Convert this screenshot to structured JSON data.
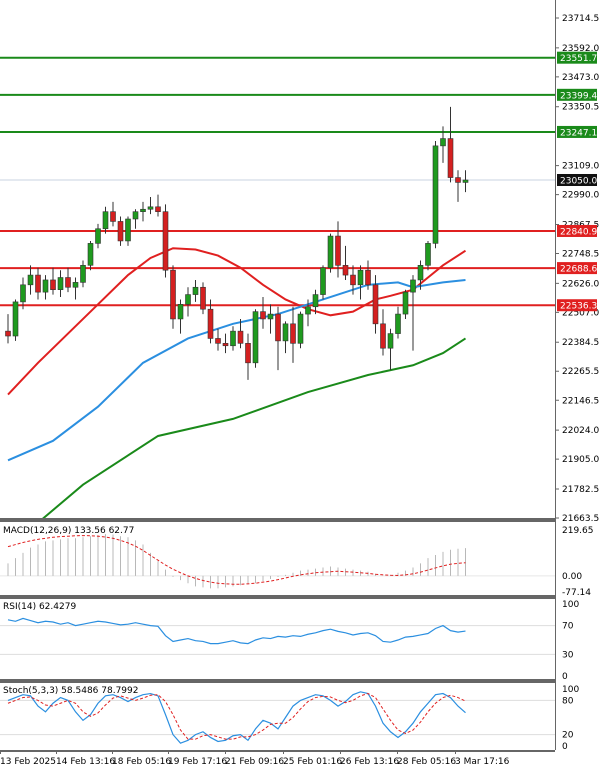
{
  "chart_data": {
    "type": "candlestick",
    "price_axis": {
      "ticks": [
        23714.5,
        23592.0,
        23473.0,
        23350.5,
        23109.0,
        22990.0,
        22867.5,
        22748.5,
        22626.0,
        22507.0,
        22384.5,
        22265.5,
        22146.5,
        22024.0,
        21905.0,
        21782.5,
        21663.5
      ]
    },
    "time_labels": [
      "13 Feb 2025",
      "14 Feb 13:16",
      "18 Feb 05:16",
      "19 Feb 17:16",
      "21 Feb 09:16",
      "25 Feb 01:16",
      "26 Feb 13:16",
      "28 Feb 05:16",
      "3 Mar 17:16"
    ],
    "horizontal_levels": [
      {
        "value": 23551.7,
        "label": "23551.7",
        "color": "#1a8a1a"
      },
      {
        "value": 23399.4,
        "label": "23399.4",
        "color": "#1a8a1a"
      },
      {
        "value": 23247.1,
        "label": "23247.1",
        "color": "#1a8a1a"
      },
      {
        "value": 22840.9,
        "label": "22840.9",
        "color": "#e02020"
      },
      {
        "value": 22688.6,
        "label": "22688.6",
        "color": "#e02020"
      },
      {
        "value": 22536.3,
        "label": "22536.3",
        "color": "#e02020"
      }
    ],
    "current_price": {
      "value": 23050.0,
      "label": "23050.0"
    },
    "candles": [
      [
        22430,
        22500,
        22380,
        22410
      ],
      [
        22410,
        22560,
        22390,
        22550
      ],
      [
        22550,
        22650,
        22520,
        22620
      ],
      [
        22620,
        22700,
        22580,
        22660
      ],
      [
        22660,
        22690,
        22560,
        22590
      ],
      [
        22590,
        22660,
        22560,
        22640
      ],
      [
        22640,
        22690,
        22580,
        22600
      ],
      [
        22600,
        22680,
        22570,
        22650
      ],
      [
        22650,
        22690,
        22590,
        22610
      ],
      [
        22610,
        22650,
        22560,
        22630
      ],
      [
        22630,
        22720,
        22610,
        22700
      ],
      [
        22700,
        22800,
        22680,
        22790
      ],
      [
        22790,
        22870,
        22770,
        22850
      ],
      [
        22850,
        22940,
        22830,
        22920
      ],
      [
        22920,
        22960,
        22860,
        22880
      ],
      [
        22880,
        22900,
        22780,
        22800
      ],
      [
        22800,
        22900,
        22780,
        22890
      ],
      [
        22890,
        22930,
        22850,
        22920
      ],
      [
        22920,
        22960,
        22880,
        22930
      ],
      [
        22930,
        22980,
        22910,
        22940
      ],
      [
        22940,
        22990,
        22900,
        22920
      ],
      [
        22920,
        22950,
        22650,
        22680
      ],
      [
        22680,
        22700,
        22440,
        22480
      ],
      [
        22480,
        22560,
        22420,
        22540
      ],
      [
        22540,
        22610,
        22490,
        22580
      ],
      [
        22580,
        22640,
        22550,
        22610
      ],
      [
        22610,
        22630,
        22500,
        22520
      ],
      [
        22520,
        22560,
        22380,
        22400
      ],
      [
        22400,
        22440,
        22350,
        22380
      ],
      [
        22380,
        22420,
        22340,
        22370
      ],
      [
        22370,
        22450,
        22350,
        22430
      ],
      [
        22430,
        22480,
        22360,
        22380
      ],
      [
        22380,
        22420,
        22230,
        22300
      ],
      [
        22300,
        22520,
        22280,
        22510
      ],
      [
        22510,
        22570,
        22440,
        22480
      ],
      [
        22480,
        22540,
        22420,
        22500
      ],
      [
        22500,
        22530,
        22270,
        22390
      ],
      [
        22390,
        22470,
        22340,
        22460
      ],
      [
        22460,
        22530,
        22300,
        22380
      ],
      [
        22380,
        22510,
        22360,
        22500
      ],
      [
        22500,
        22560,
        22450,
        22530
      ],
      [
        22530,
        22600,
        22500,
        22580
      ],
      [
        22580,
        22700,
        22560,
        22690
      ],
      [
        22690,
        22830,
        22670,
        22820
      ],
      [
        22820,
        22880,
        22650,
        22700
      ],
      [
        22700,
        22780,
        22640,
        22660
      ],
      [
        22660,
        22700,
        22580,
        22620
      ],
      [
        22620,
        22700,
        22560,
        22680
      ],
      [
        22680,
        22720,
        22600,
        22620
      ],
      [
        22620,
        22660,
        22420,
        22460
      ],
      [
        22460,
        22520,
        22330,
        22360
      ],
      [
        22360,
        22440,
        22270,
        22420
      ],
      [
        22420,
        22530,
        22400,
        22500
      ],
      [
        22500,
        22600,
        22480,
        22590
      ],
      [
        22590,
        22660,
        22350,
        22640
      ],
      [
        22640,
        22720,
        22600,
        22700
      ],
      [
        22700,
        22800,
        22680,
        22790
      ],
      [
        22790,
        23210,
        22770,
        23190
      ],
      [
        23190,
        23270,
        23120,
        23220
      ],
      [
        23220,
        23350,
        23040,
        23060
      ],
      [
        23060,
        23090,
        22960,
        23040
      ],
      [
        23040,
        23090,
        23000,
        23050
      ]
    ],
    "overlay_lines": [
      {
        "name": "",
        "color": "#e02020",
        "points": [
          [
            0,
            22170
          ],
          [
            4,
            22300
          ],
          [
            8,
            22420
          ],
          [
            12,
            22540
          ],
          [
            16,
            22660
          ],
          [
            19,
            22730
          ],
          [
            22,
            22770
          ],
          [
            25,
            22765
          ],
          [
            28,
            22740
          ],
          [
            31,
            22690
          ],
          [
            34,
            22620
          ],
          [
            37,
            22560
          ],
          [
            40,
            22520
          ],
          [
            43,
            22495
          ],
          [
            46,
            22510
          ],
          [
            49,
            22560
          ],
          [
            51,
            22575
          ],
          [
            54,
            22600
          ],
          [
            56,
            22650
          ],
          [
            58,
            22700
          ],
          [
            61,
            22760
          ]
        ]
      },
      {
        "name": "",
        "color": "#2b8fe0",
        "points": [
          [
            0,
            21900
          ],
          [
            6,
            21980
          ],
          [
            12,
            22120
          ],
          [
            18,
            22300
          ],
          [
            24,
            22400
          ],
          [
            30,
            22460
          ],
          [
            36,
            22500
          ],
          [
            42,
            22560
          ],
          [
            48,
            22620
          ],
          [
            52,
            22630
          ],
          [
            54,
            22610
          ],
          [
            58,
            22630
          ],
          [
            61,
            22640
          ]
        ]
      },
      {
        "name": "",
        "color": "#1a8a1a",
        "points": [
          [
            0,
            21540
          ],
          [
            10,
            21800
          ],
          [
            20,
            22000
          ],
          [
            30,
            22070
          ],
          [
            40,
            22180
          ],
          [
            48,
            22250
          ],
          [
            54,
            22290
          ],
          [
            58,
            22340
          ],
          [
            61,
            22400
          ]
        ]
      }
    ],
    "macd": {
      "title": "MACD(12,26,9) 133.56 62.77",
      "axis": [
        "219.65",
        "0.00",
        "-77.14"
      ],
      "hist": [
        60,
        85,
        110,
        135,
        150,
        165,
        170,
        175,
        180,
        180,
        185,
        190,
        195,
        200,
        198,
        190,
        185,
        170,
        150,
        110,
        70,
        30,
        -5,
        -20,
        -35,
        -50,
        -55,
        -60,
        -60,
        -55,
        -50,
        -45,
        -40,
        -35,
        -25,
        -15,
        -5,
        5,
        15,
        25,
        30,
        35,
        40,
        45,
        40,
        35,
        30,
        25,
        20,
        10,
        0,
        5,
        15,
        25,
        40,
        60,
        85,
        100,
        115,
        125,
        130,
        133
      ],
      "signal": [
        140,
        150,
        160,
        168,
        175,
        180,
        185,
        188,
        190,
        192,
        193,
        192,
        190,
        186,
        180,
        170,
        158,
        142,
        122,
        98,
        75,
        52,
        32,
        15,
        0,
        -12,
        -22,
        -30,
        -35,
        -38,
        -40,
        -40,
        -38,
        -35,
        -30,
        -25,
        -18,
        -10,
        -2,
        5,
        10,
        15,
        18,
        20,
        22,
        20,
        18,
        15,
        12,
        8,
        5,
        3,
        2,
        5,
        10,
        18,
        28,
        38,
        48,
        56,
        60,
        63
      ]
    },
    "rsi": {
      "title": "RSI(14) 62.4279",
      "axis": [
        "100",
        "70",
        "30",
        "0"
      ],
      "values": [
        78,
        76,
        80,
        77,
        74,
        76,
        75,
        72,
        74,
        70,
        72,
        74,
        76,
        75,
        73,
        71,
        72,
        74,
        72,
        70,
        69,
        56,
        48,
        50,
        52,
        49,
        48,
        45,
        45,
        47,
        49,
        46,
        45,
        50,
        53,
        52,
        55,
        54,
        56,
        55,
        58,
        60,
        63,
        65,
        62,
        60,
        57,
        59,
        60,
        56,
        48,
        47,
        50,
        54,
        55,
        57,
        59,
        66,
        70,
        63,
        61,
        62.4
      ]
    },
    "stoch": {
      "title": "Stoch(5,3,3) 58.5486 78.7992",
      "axis": [
        "100",
        "80",
        "20",
        "0"
      ],
      "k": [
        80,
        85,
        90,
        88,
        70,
        60,
        75,
        85,
        80,
        60,
        45,
        55,
        75,
        88,
        90,
        85,
        78,
        85,
        90,
        92,
        88,
        55,
        20,
        5,
        10,
        20,
        25,
        15,
        8,
        10,
        18,
        20,
        10,
        30,
        45,
        40,
        30,
        50,
        70,
        80,
        85,
        90,
        88,
        80,
        70,
        78,
        90,
        95,
        92,
        70,
        40,
        25,
        15,
        25,
        40,
        60,
        75,
        90,
        92,
        85,
        70,
        58.5
      ],
      "d": [
        75,
        80,
        85,
        86,
        80,
        72,
        70,
        75,
        80,
        75,
        60,
        52,
        58,
        72,
        84,
        88,
        84,
        80,
        84,
        89,
        90,
        78,
        55,
        28,
        12,
        12,
        18,
        20,
        16,
        12,
        12,
        16,
        16,
        20,
        28,
        38,
        40,
        40,
        50,
        65,
        78,
        85,
        87,
        86,
        80,
        76,
        80,
        88,
        92,
        85,
        65,
        45,
        28,
        22,
        28,
        42,
        60,
        75,
        85,
        89,
        85,
        78.8
      ]
    }
  }
}
